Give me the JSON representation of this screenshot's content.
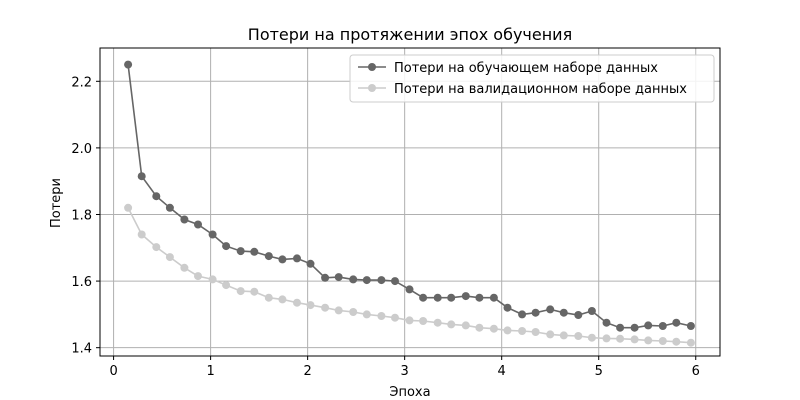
{
  "chart_data": {
    "type": "line",
    "title": "Потери на протяжении эпох обучения",
    "xlabel": "Эпоха",
    "ylabel": "Потери",
    "xlim": [
      -0.14,
      6.25
    ],
    "ylim": [
      1.375,
      2.3
    ],
    "xticks": [
      0,
      1,
      2,
      3,
      4,
      5,
      6
    ],
    "yticks": [
      1.4,
      1.6,
      1.8,
      2.0,
      2.2
    ],
    "grid": true,
    "legend_position": "top-right",
    "x": [
      0.15,
      0.29,
      0.44,
      0.58,
      0.73,
      0.87,
      1.02,
      1.16,
      1.31,
      1.45,
      1.6,
      1.74,
      1.89,
      2.03,
      2.18,
      2.32,
      2.47,
      2.61,
      2.76,
      2.9,
      3.05,
      3.19,
      3.34,
      3.48,
      3.63,
      3.77,
      3.92,
      4.06,
      4.21,
      4.35,
      4.5,
      4.64,
      4.79,
      4.93,
      5.08,
      5.22,
      5.37,
      5.51,
      5.66,
      5.8,
      5.95
    ],
    "series": [
      {
        "name": "Потери на обучающем наборе данных",
        "color": "#666666",
        "values": [
          2.25,
          1.915,
          1.855,
          1.82,
          1.785,
          1.77,
          1.74,
          1.705,
          1.69,
          1.688,
          1.675,
          1.665,
          1.668,
          1.652,
          1.61,
          1.612,
          1.605,
          1.603,
          1.603,
          1.6,
          1.575,
          1.55,
          1.55,
          1.55,
          1.555,
          1.55,
          1.55,
          1.52,
          1.5,
          1.505,
          1.515,
          1.505,
          1.498,
          1.51,
          1.475,
          1.46,
          1.46,
          1.467,
          1.465,
          1.475,
          1.465
        ]
      },
      {
        "name": "Потери на валидационном наборе данных",
        "color": "#cccccc",
        "values": [
          1.82,
          1.74,
          1.702,
          1.672,
          1.64,
          1.615,
          1.605,
          1.588,
          1.57,
          1.568,
          1.55,
          1.545,
          1.535,
          1.528,
          1.52,
          1.512,
          1.507,
          1.5,
          1.495,
          1.49,
          1.482,
          1.48,
          1.475,
          1.47,
          1.467,
          1.46,
          1.457,
          1.452,
          1.45,
          1.447,
          1.44,
          1.437,
          1.435,
          1.43,
          1.428,
          1.427,
          1.425,
          1.422,
          1.42,
          1.418,
          1.415
        ]
      }
    ]
  }
}
